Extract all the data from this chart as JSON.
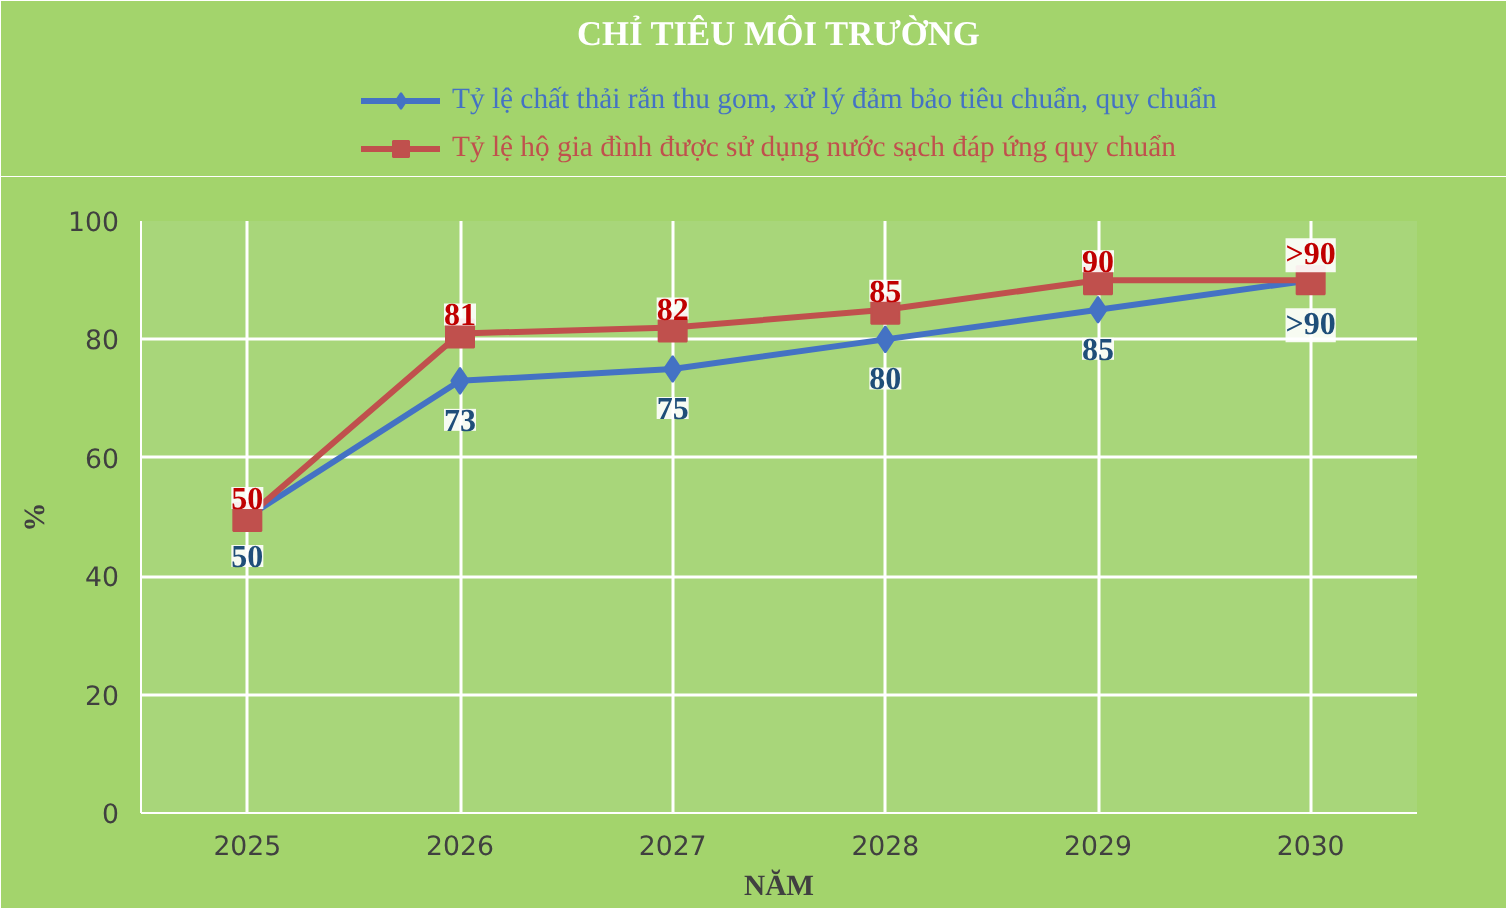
{
  "chart_data": {
    "type": "line",
    "title": "CHỈ TIÊU MÔI TRƯỜNG",
    "xlabel": "NĂM",
    "ylabel": "%",
    "categories": [
      "2025",
      "2026",
      "2027",
      "2028",
      "2029",
      "2030"
    ],
    "series": [
      {
        "name": "Tỷ lệ chất thải rắn thu gom, xử lý đảm bảo tiêu chuẩn, quy chuẩn",
        "color": "#4472c4",
        "marker": "diamond",
        "values": [
          50,
          73,
          75,
          80,
          85,
          90
        ],
        "value_labels": [
          "50",
          "73",
          "75",
          "80",
          "85",
          ">90"
        ]
      },
      {
        "name": "Tỷ lệ hộ gia đình được sử dụng nước sạch đáp ứng quy chuẩn",
        "color": "#c0504d",
        "marker": "square",
        "values": [
          50,
          81,
          82,
          85,
          90,
          90
        ],
        "value_labels": [
          "50",
          "81",
          "82",
          "85",
          "90",
          ">90"
        ]
      }
    ],
    "ylim": [
      0,
      100
    ],
    "yticks": [
      0,
      20,
      40,
      60,
      80,
      100
    ],
    "grid": true,
    "legend": "top",
    "line_style": "solid"
  }
}
